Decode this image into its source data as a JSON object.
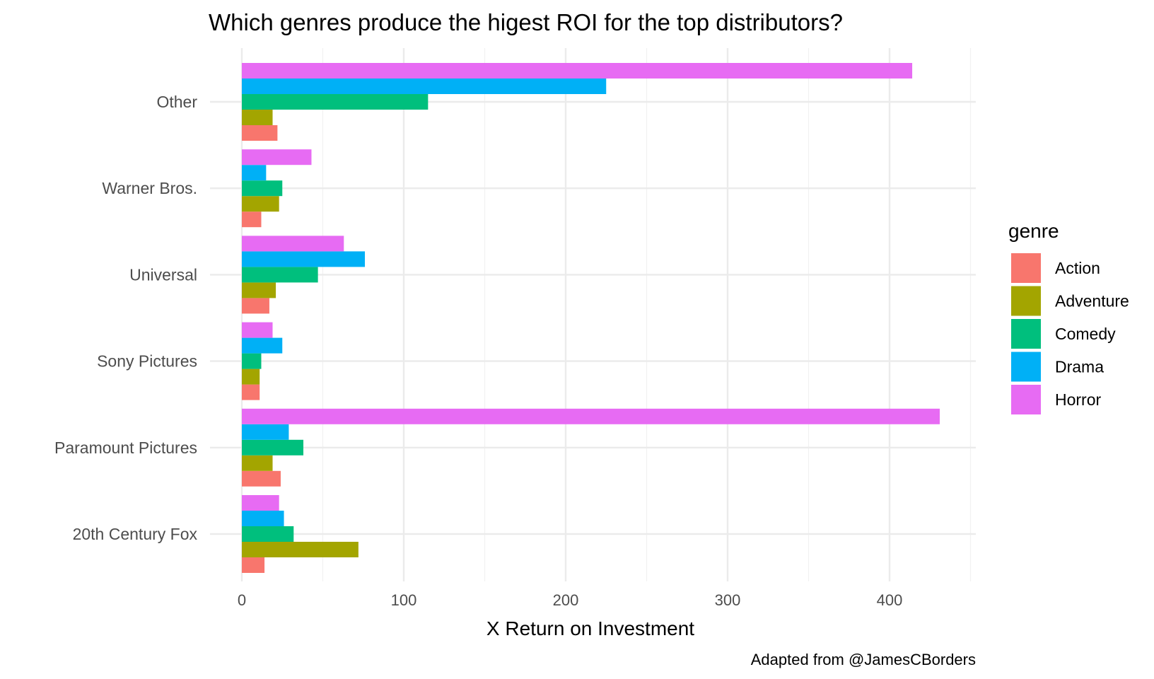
{
  "chart_data": {
    "type": "bar",
    "orientation": "horizontal",
    "title": "Which genres produce the higest ROI for the top distributors?",
    "xlabel": "X Return on Investment",
    "ylabel": "",
    "caption": "Adapted from @JamesCBorders",
    "categories": [
      "20th Century Fox",
      "Paramount Pictures",
      "Sony Pictures",
      "Universal",
      "Warner Bros.",
      "Other"
    ],
    "xlim": [
      0,
      450
    ],
    "xticks": [
      0,
      100,
      200,
      300,
      400
    ],
    "grid": true,
    "legend": {
      "title": "genre",
      "position": "right"
    },
    "series": [
      {
        "name": "Action",
        "color": "#F8766D",
        "values": [
          14,
          24,
          11,
          17,
          12,
          22
        ]
      },
      {
        "name": "Adventure",
        "color": "#A3A500",
        "values": [
          72,
          19,
          11,
          21,
          23,
          19
        ]
      },
      {
        "name": "Comedy",
        "color": "#00BF7D",
        "values": [
          32,
          38,
          12,
          47,
          25,
          115
        ]
      },
      {
        "name": "Drama",
        "color": "#00B0F6",
        "values": [
          26,
          29,
          25,
          76,
          15,
          225
        ]
      },
      {
        "name": "Horror",
        "color": "#E76BF3",
        "values": [
          23,
          431,
          19,
          63,
          43,
          414
        ]
      }
    ]
  }
}
